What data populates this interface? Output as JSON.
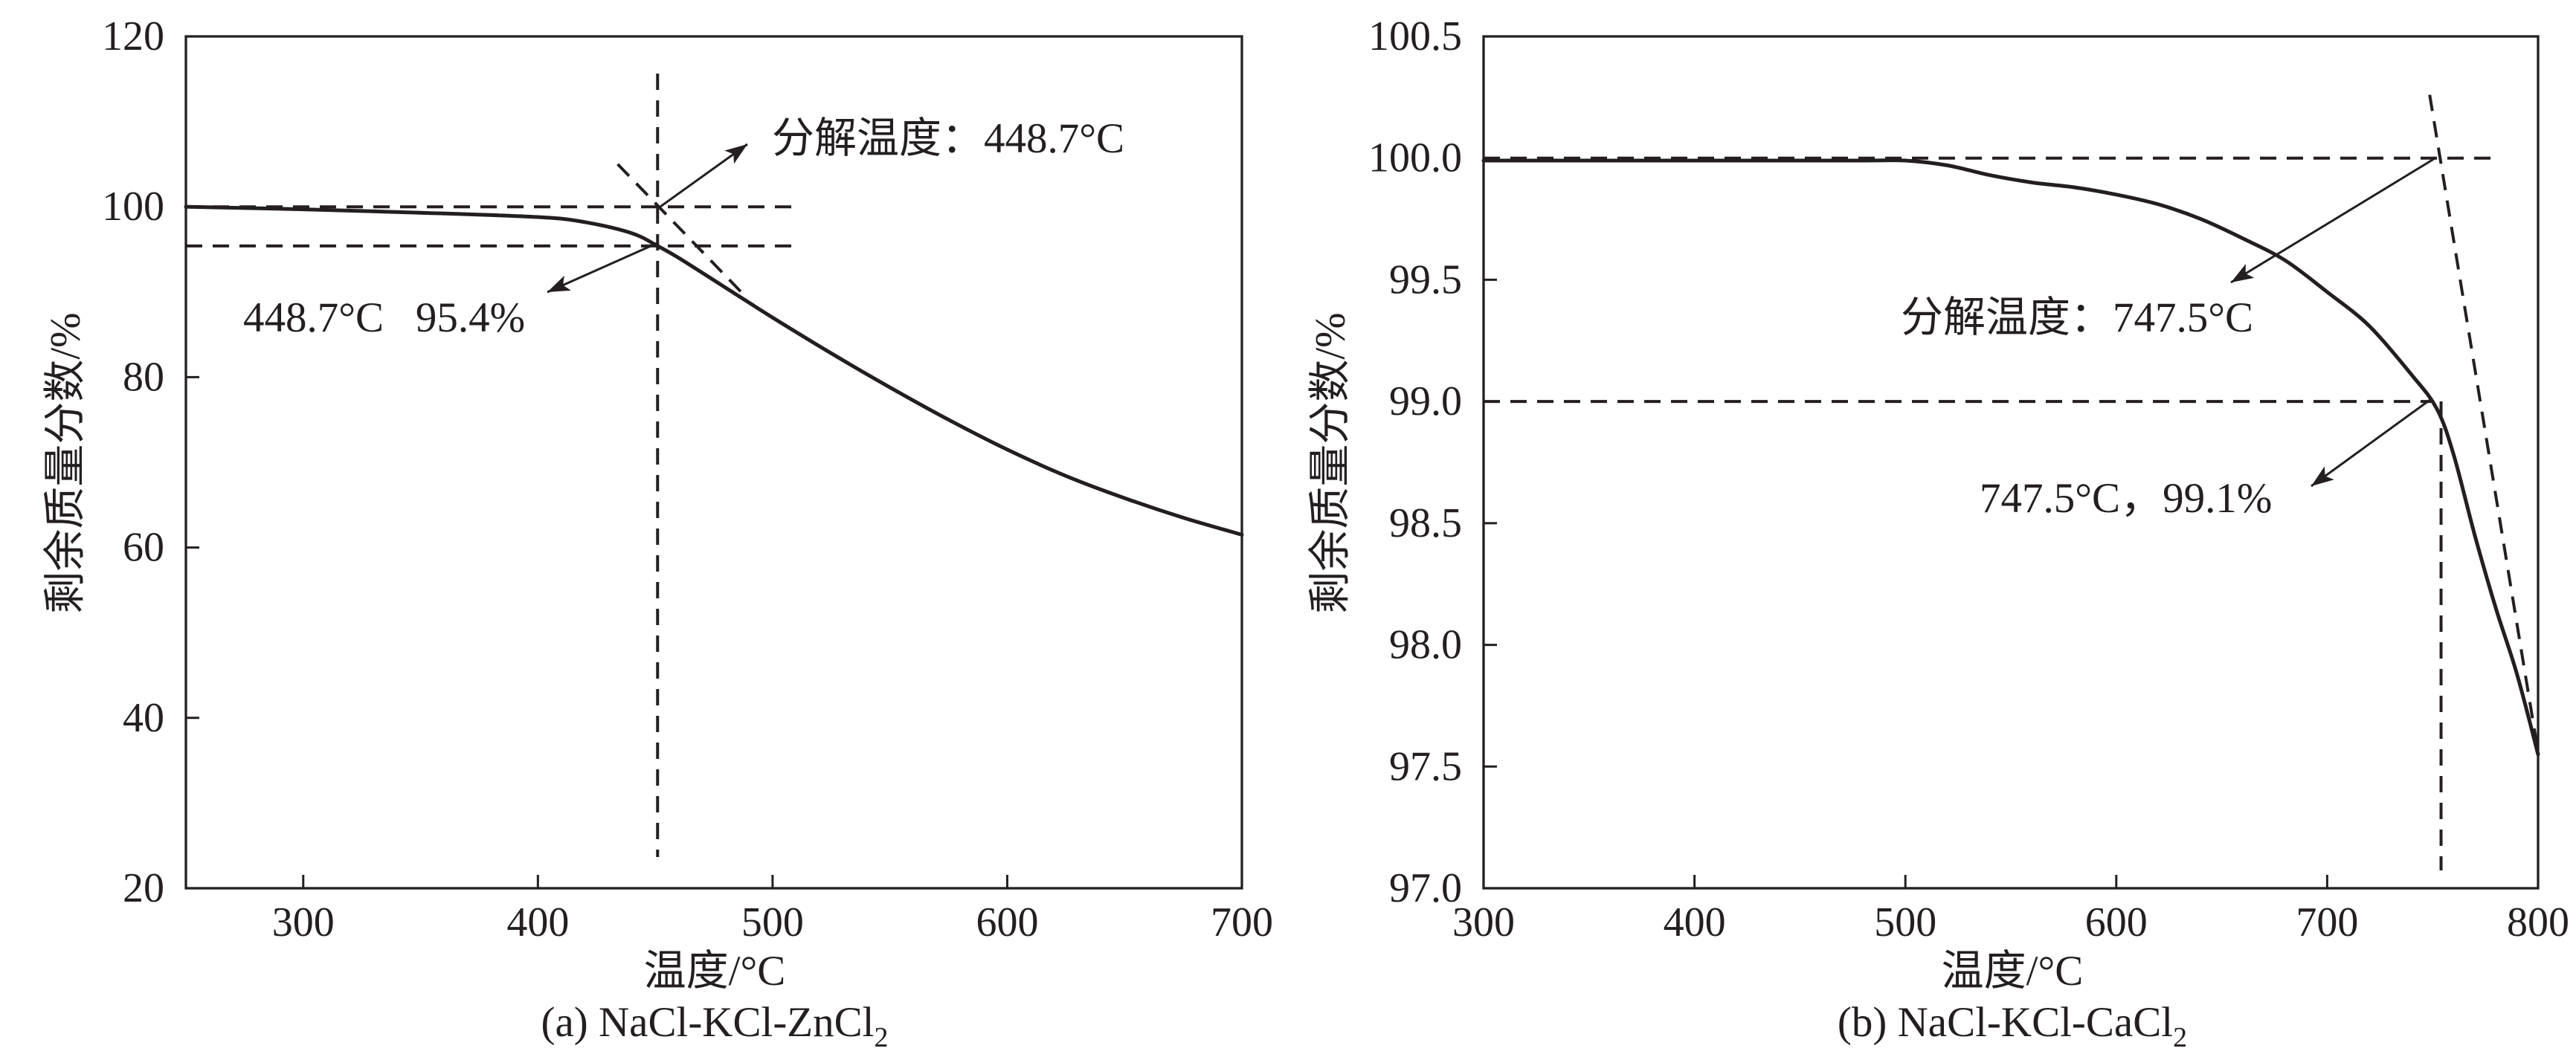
{
  "chart_data": [
    {
      "type": "line",
      "caption": "(a) NaCl-KCl-ZnCl",
      "caption_subscript": "2",
      "xlabel": "温度/°C",
      "ylabel": "剩余质量分数/%",
      "xlim": [
        250,
        700
      ],
      "ylim": [
        20,
        120
      ],
      "x_ticks": [
        "300",
        "400",
        "500",
        "600",
        "700"
      ],
      "y_ticks": [
        "20",
        "40",
        "60",
        "80",
        "100",
        "120"
      ],
      "grid": false,
      "line_color": "#231f20",
      "series": [
        {
          "x": [
            250,
            300,
            350,
            400,
            420,
            440,
            451,
            460,
            480,
            500,
            525,
            550,
            575,
            600,
            625,
            650,
            675,
            700
          ],
          "y": [
            100.0,
            99.7,
            99.3,
            98.8,
            98.2,
            96.9,
            95.4,
            94.0,
            90.5,
            87.0,
            82.8,
            78.8,
            75.0,
            71.5,
            68.4,
            65.8,
            63.5,
            61.5
          ]
        }
      ],
      "reference_lines": [
        {
          "orientation": "horizontal",
          "y": 100
        },
        {
          "orientation": "horizontal",
          "y": 95.4
        },
        {
          "orientation": "vertical",
          "x": 451
        }
      ],
      "tangent_line": {
        "x": [
          434,
          488
        ],
        "y": [
          105,
          89.6
        ]
      },
      "annotations": [
        {
          "text": "分解温度：448.7°C"
        },
        {
          "text": "448.7°C   95.4%"
        }
      ]
    },
    {
      "type": "line",
      "caption": "(b) NaCl-KCl-CaCl",
      "caption_subscript": "2",
      "xlabel": "温度/°C",
      "ylabel": "剩余质量分数/%",
      "xlim": [
        300,
        800
      ],
      "ylim": [
        97.0,
        100.5
      ],
      "x_ticks": [
        "300",
        "400",
        "500",
        "600",
        "700",
        "800"
      ],
      "y_ticks": [
        "97.0",
        "97.5",
        "98.0",
        "98.5",
        "99.0",
        "99.5",
        "100.0",
        "100.5"
      ],
      "grid": false,
      "line_color": "#231f20",
      "series": [
        {
          "x": [
            300,
            400,
            480,
            500,
            520,
            540,
            560,
            580,
            600,
            620,
            640,
            660,
            680,
            700,
            720,
            740,
            752,
            760,
            770,
            780,
            790,
            800
          ],
          "y": [
            99.99,
            99.99,
            99.99,
            99.99,
            99.97,
            99.93,
            99.9,
            99.88,
            99.85,
            99.81,
            99.75,
            99.67,
            99.58,
            99.45,
            99.31,
            99.11,
            98.97,
            98.78,
            98.45,
            98.15,
            97.88,
            97.55
          ]
        }
      ],
      "reference_lines": [
        {
          "orientation": "horizontal",
          "y": 100.0
        },
        {
          "orientation": "horizontal",
          "y": 99.0
        },
        {
          "orientation": "vertical",
          "x": 754
        }
      ],
      "tangent_line": {
        "x": [
          748.6,
          800
        ],
        "y": [
          100.26,
          97.56
        ]
      },
      "annotations": [
        {
          "text": "分解温度：747.5°C"
        },
        {
          "text": "747.5°C，99.1%"
        }
      ]
    }
  ]
}
